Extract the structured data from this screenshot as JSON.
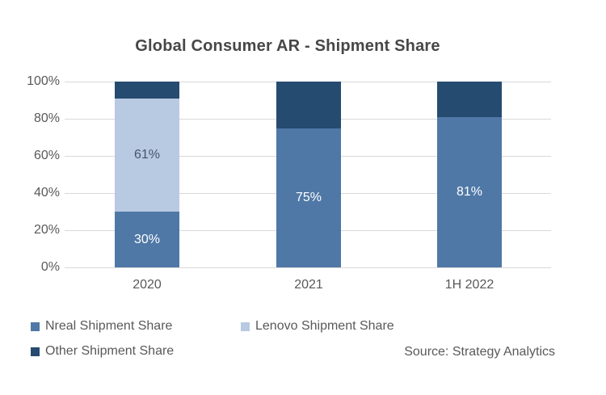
{
  "chart_data": {
    "type": "bar",
    "subtype": "stacked-100",
    "title": "Global Consumer AR - Shipment Share",
    "categories": [
      "2020",
      "2021",
      "1H 2022"
    ],
    "series": [
      {
        "name": "Nreal Shipment Share",
        "color": "#4f78a6",
        "values": [
          30,
          75,
          81
        ],
        "data_labels": [
          "30%",
          "75%",
          "81%"
        ],
        "label_color": "#ffffff"
      },
      {
        "name": "Lenovo Shipment Share",
        "color": "#b8c9e2",
        "values": [
          61,
          0,
          0
        ],
        "data_labels": [
          "61%",
          "",
          ""
        ],
        "label_color": "#44546a"
      },
      {
        "name": "Other Shipment Share",
        "color": "#264b70",
        "values": [
          9,
          25,
          19
        ],
        "data_labels": [
          "",
          "",
          ""
        ],
        "label_color": "#ffffff"
      }
    ],
    "xlabel": "",
    "ylabel": "",
    "ylim": [
      0,
      100
    ],
    "y_ticks": [
      "0%",
      "20%",
      "40%",
      "60%",
      "80%",
      "100%"
    ],
    "grid": true,
    "gridline_color": "#d9d9d9",
    "axis_text_color": "#595959",
    "legend_position": "bottom",
    "source": "Source: Strategy Analytics"
  }
}
